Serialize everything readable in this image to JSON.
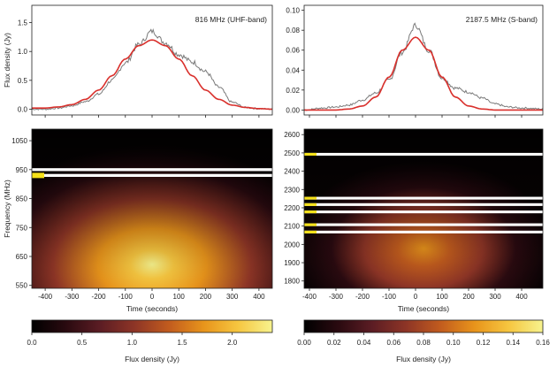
{
  "chart_data": [
    {
      "type": "line",
      "panel": "top-left",
      "annotation": "816 MHz (UHF-band)",
      "xlim": [
        -450,
        450
      ],
      "ylim": [
        -0.1,
        1.8
      ],
      "ylabel": "Flux density (Jy)",
      "yticks": [
        "0.0",
        "0.5",
        "1.0",
        "1.5"
      ],
      "ytick_values": [
        0.0,
        0.5,
        1.0,
        1.5
      ],
      "series": [
        {
          "color": "#7a7a7a",
          "style": "noisy",
          "x": [
            -450,
            -400,
            -350,
            -300,
            -250,
            -200,
            -150,
            -100,
            -50,
            0,
            50,
            100,
            150,
            200,
            250,
            300,
            350,
            400,
            450
          ],
          "y": [
            0.0,
            0.0,
            0.02,
            0.06,
            0.13,
            0.26,
            0.5,
            0.8,
            1.12,
            1.35,
            1.15,
            0.95,
            0.82,
            0.65,
            0.38,
            0.12,
            0.03,
            0.01,
            0.0
          ]
        },
        {
          "color": "#d9302c",
          "style": "smooth",
          "x": [
            -450,
            -400,
            -350,
            -300,
            -250,
            -200,
            -150,
            -100,
            -50,
            0,
            50,
            100,
            150,
            200,
            250,
            300,
            350,
            400,
            450
          ],
          "y": [
            0.02,
            0.02,
            0.04,
            0.08,
            0.17,
            0.33,
            0.58,
            0.87,
            1.1,
            1.2,
            1.1,
            0.87,
            0.58,
            0.33,
            0.17,
            0.07,
            0.03,
            0.01,
            0.0
          ]
        }
      ]
    },
    {
      "type": "line",
      "panel": "top-right",
      "annotation": "2187.5 MHz (S-band)",
      "xlim": [
        -420,
        480
      ],
      "ylim": [
        -0.005,
        0.105
      ],
      "yticks": [
        "0.00",
        "0.02",
        "0.04",
        "0.06",
        "0.08",
        "0.10"
      ],
      "ytick_values": [
        0.0,
        0.02,
        0.04,
        0.06,
        0.08,
        0.1
      ],
      "series": [
        {
          "color": "#7a7a7a",
          "style": "noisy",
          "x": [
            -420,
            -350,
            -300,
            -250,
            -200,
            -150,
            -100,
            -50,
            0,
            50,
            100,
            150,
            200,
            250,
            300,
            350,
            400,
            480
          ],
          "y": [
            0.0,
            0.002,
            0.003,
            0.005,
            0.01,
            0.017,
            0.03,
            0.058,
            0.085,
            0.06,
            0.032,
            0.022,
            0.018,
            0.012,
            0.006,
            0.003,
            0.002,
            0.001
          ]
        },
        {
          "color": "#d9302c",
          "style": "smooth",
          "x": [
            -420,
            -350,
            -300,
            -250,
            -200,
            -150,
            -100,
            -50,
            0,
            50,
            100,
            150,
            200,
            250,
            300,
            350,
            400,
            480
          ],
          "y": [
            0.0,
            0.0,
            0.0,
            0.001,
            0.004,
            0.013,
            0.033,
            0.06,
            0.073,
            0.06,
            0.033,
            0.013,
            0.004,
            0.001,
            0.0,
            0.0,
            0.0,
            0.0
          ]
        }
      ]
    },
    {
      "type": "heatmap",
      "panel": "bottom-left",
      "xlabel": "Time (seconds)",
      "ylabel": "Frequency (MHz)",
      "xlim": [
        -450,
        450
      ],
      "ylim": [
        540,
        1090
      ],
      "xticks": [
        "-400",
        "-300",
        "-200",
        "-100",
        "0",
        "100",
        "200",
        "300",
        "400"
      ],
      "xtick_values": [
        -400,
        -300,
        -200,
        -100,
        0,
        100,
        200,
        300,
        400
      ],
      "yticks": [
        "550",
        "650",
        "750",
        "850",
        "950",
        "1050"
      ],
      "ytick_values": [
        550,
        650,
        750,
        850,
        950,
        1050
      ],
      "masked_bands_mhz": [
        [
          945,
          955
        ],
        [
          925,
          935
        ]
      ],
      "flagged_marker_rows_mhz": [
        930
      ],
      "colorbar": {
        "label": "Flux density (Jy)",
        "ticks": [
          "0.0",
          "0.5",
          "1.0",
          "1.5",
          "2.0"
        ],
        "tick_values": [
          0.0,
          0.5,
          1.0,
          1.5,
          2.0
        ],
        "range": [
          0,
          2.4
        ]
      }
    },
    {
      "type": "heatmap",
      "panel": "bottom-right",
      "xlabel": "Time (seconds)",
      "xlim": [
        -420,
        480
      ],
      "ylim": [
        1760,
        2630
      ],
      "xticks": [
        "-400",
        "-300",
        "-200",
        "-100",
        "0",
        "100",
        "200",
        "300",
        "400"
      ],
      "xtick_values": [
        -400,
        -300,
        -200,
        -100,
        0,
        100,
        200,
        300,
        400
      ],
      "yticks": [
        "1800",
        "1900",
        "2000",
        "2100",
        "2200",
        "2300",
        "2400",
        "2500",
        "2600"
      ],
      "ytick_values": [
        1800,
        1900,
        2000,
        2100,
        2200,
        2300,
        2400,
        2500,
        2600
      ],
      "masked_bands_mhz": [
        [
          2485,
          2500
        ],
        [
          2245,
          2260
        ],
        [
          2210,
          2225
        ],
        [
          2170,
          2185
        ],
        [
          2100,
          2115
        ],
        [
          2060,
          2075
        ]
      ],
      "colorbar": {
        "label": "Flux density (Jy)",
        "ticks": [
          "0.00",
          "0.02",
          "0.04",
          "0.06",
          "0.08",
          "0.10",
          "0.12",
          "0.14",
          "0.16"
        ],
        "tick_values": [
          0.0,
          0.02,
          0.04,
          0.06,
          0.08,
          0.1,
          0.12,
          0.14,
          0.16
        ],
        "range": [
          0,
          0.16
        ]
      }
    }
  ],
  "colors": {
    "colormap": [
      "#000000",
      "#2a0a10",
      "#5c1d24",
      "#8e3526",
      "#c25c1e",
      "#e8941b",
      "#f6c640",
      "#f7f38e"
    ],
    "fit_line": "#d9302c",
    "data_line": "#7a7a7a",
    "mask": "#ffffff",
    "flag_marker": "#f5e11a"
  }
}
